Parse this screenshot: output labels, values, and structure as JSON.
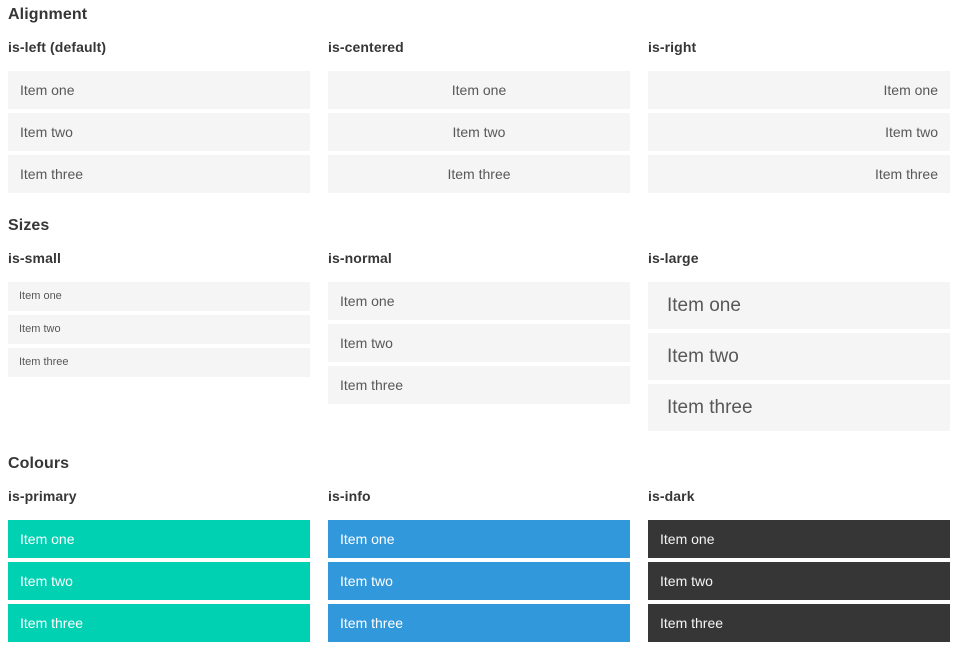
{
  "colors": {
    "item_background": "#f5f5f5",
    "item_text": "#585858",
    "heading_text": "#363636",
    "primary": "#00d1b2",
    "info": "#3298dc",
    "dark": "#363636",
    "light_text": "#ffffff"
  },
  "sections": [
    {
      "title": "Alignment",
      "groups": [
        {
          "heading": "is-left (default)",
          "items": [
            "Item one",
            "Item two",
            "Item three"
          ]
        },
        {
          "heading": "is-centered",
          "items": [
            "Item one",
            "Item two",
            "Item three"
          ]
        },
        {
          "heading": "is-right",
          "items": [
            "Item one",
            "Item two",
            "Item three"
          ]
        }
      ]
    },
    {
      "title": "Sizes",
      "groups": [
        {
          "heading": "is-small",
          "items": [
            "Item one",
            "Item two",
            "Item three"
          ]
        },
        {
          "heading": "is-normal",
          "items": [
            "Item one",
            "Item two",
            "Item three"
          ]
        },
        {
          "heading": "is-large",
          "items": [
            "Item one",
            "Item two",
            "Item three"
          ]
        }
      ]
    },
    {
      "title": "Colours",
      "groups": [
        {
          "heading": "is-primary",
          "items": [
            "Item one",
            "Item two",
            "Item three"
          ]
        },
        {
          "heading": "is-info",
          "items": [
            "Item one",
            "Item two",
            "Item three"
          ]
        },
        {
          "heading": "is-dark",
          "items": [
            "Item one",
            "Item two",
            "Item three"
          ]
        }
      ]
    }
  ]
}
